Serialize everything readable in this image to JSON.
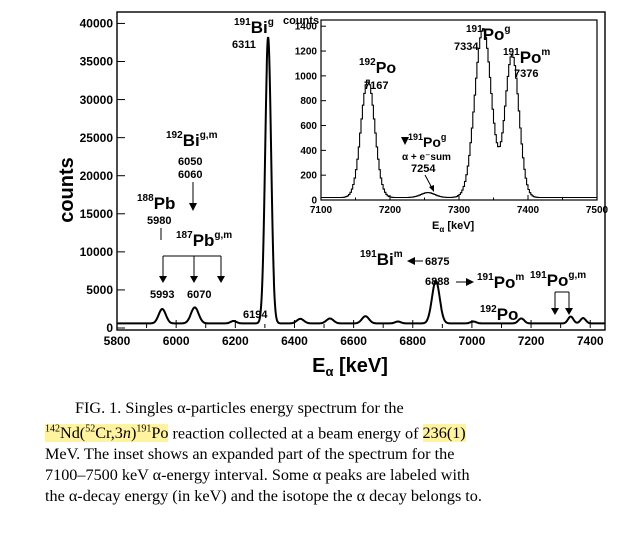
{
  "chart_data": [
    {
      "type": "line",
      "xlabel": "E",
      "xlabel_sub": "α",
      "xlabel_unit": " [keV]",
      "ylabel": "counts",
      "xlim": [
        5800,
        7450
      ],
      "ylim": [
        0,
        41500
      ],
      "x_ticks": [
        5800,
        6000,
        6200,
        6400,
        6600,
        6800,
        7000,
        7200,
        7400
      ],
      "y_ticks": [
        0,
        5000,
        10000,
        15000,
        20000,
        25000,
        30000,
        35000,
        40000
      ],
      "grid": false,
      "series": [
        {
          "baseline": 600,
          "peaks": [
            {
              "x": 5953,
              "height": 1900,
              "width": 12
            },
            {
              "x": 6063,
              "height": 2100,
              "width": 13
            },
            {
              "x": 6194,
              "height": 320,
              "width": 10
            },
            {
              "x": 6311,
              "height": 37600,
              "width": 10
            },
            {
              "x": 6420,
              "height": 600,
              "width": 12
            },
            {
              "x": 6520,
              "height": 650,
              "width": 12
            },
            {
              "x": 6640,
              "height": 950,
              "width": 12
            },
            {
              "x": 6750,
              "height": 250,
              "width": 10
            },
            {
              "x": 6878,
              "height": 5600,
              "width": 13
            },
            {
              "x": 7005,
              "height": 250,
              "width": 10
            },
            {
              "x": 7167,
              "height": 650,
              "width": 10
            },
            {
              "x": 7334,
              "height": 900,
              "width": 9
            },
            {
              "x": 7376,
              "height": 700,
              "width": 9
            }
          ]
        }
      ],
      "annotations": {
        "bi191g": {
          "iso_a": "191",
          "el": "Bi",
          "iso_b": "g",
          "energy": "6311"
        },
        "bi192": {
          "iso_a": "192",
          "el": "Bi",
          "iso_b": "g,m",
          "energy1": "6050",
          "energy2": "6060"
        },
        "pb188": {
          "iso_a": "188",
          "el": "Pb",
          "energy": "5980"
        },
        "pb187": {
          "iso_a": "187",
          "el": "Pb",
          "iso_b": "g,m"
        },
        "pb187_peaks": [
          "5993",
          "6070"
        ],
        "peak6194": "6194",
        "bi191m": {
          "iso_a": "191",
          "el": "Bi",
          "iso_b": "m",
          "energy": "6875"
        },
        "po191m_main": {
          "iso_a": "191",
          "el": "Po",
          "iso_b": "m",
          "energy": "6888"
        },
        "po192_main": {
          "iso_a": "192",
          "el": "Po"
        },
        "po191gm_main": {
          "iso_a": "191",
          "el": "Po",
          "iso_b": "g,m"
        }
      }
    },
    {
      "type": "line",
      "xlabel": "E",
      "xlabel_sub": "α",
      "xlabel_unit": " [keV]",
      "ylabel": "counts",
      "xlim": [
        7100,
        7500
      ],
      "ylim": [
        0,
        1450
      ],
      "x_ticks": [
        7100,
        7200,
        7300,
        7400,
        7500
      ],
      "y_ticks": [
        0,
        200,
        400,
        600,
        800,
        1000,
        1200,
        1400
      ],
      "grid": false,
      "series": [
        {
          "baseline": 20,
          "peaks": [
            {
              "x": 7167,
              "height": 950,
              "width": 10
            },
            {
              "x": 7254,
              "height": 40,
              "width": 10
            },
            {
              "x": 7334,
              "height": 1360,
              "width": 12
            },
            {
              "x": 7376,
              "height": 1150,
              "width": 10
            }
          ]
        }
      ],
      "annotations": {
        "po192": {
          "iso_a": "192",
          "el": "Po",
          "energy": "7167"
        },
        "po191g": {
          "iso_a": "191",
          "el": "Po",
          "iso_b": "g",
          "energy": "7334"
        },
        "po191m": {
          "iso_a": "191",
          "el": "Po",
          "iso_b": "m",
          "energy": "7376"
        },
        "sum": {
          "iso_a": "191",
          "el": "Po",
          "iso_b": "g",
          "line2": "α + e⁻sum",
          "energy": "7254"
        }
      }
    }
  ],
  "caption": {
    "line1": "FIG. 1. Singles α-particles energy spectrum for the",
    "line2_a": "142",
    "line2_b": "Nd(",
    "line2_c": "52",
    "line2_d": "Cr,3",
    "line2_e": "n",
    "line2_f": ")",
    "line2_g": "191",
    "line2_h": "Po",
    "line2_i": " reaction collected at a beam energy of ",
    "line2_j": "236(1)",
    "line3": "MeV. The inset shows an expanded part of the spectrum for the",
    "line4": "7100–7500 keV α-energy interval. Some α peaks are labeled with",
    "line5": "the α-decay energy (in keV) and the isotope the α decay belongs to."
  },
  "colors": {
    "line": "#000000",
    "highlight": "#fff3a0"
  }
}
